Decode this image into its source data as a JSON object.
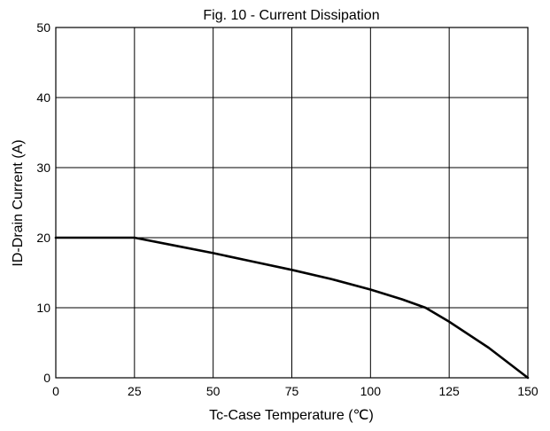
{
  "chart_data": {
    "type": "line",
    "title": "Fig. 10 - Current Dissipation",
    "xlabel": "Tc-Case Temperature (℃)",
    "ylabel": "ID-Drain Current (A)",
    "xlim": [
      0,
      150
    ],
    "ylim": [
      0,
      50
    ],
    "x_ticks": [
      0,
      25,
      50,
      75,
      100,
      125,
      150
    ],
    "y_ticks": [
      0,
      10,
      20,
      30,
      40,
      50
    ],
    "x_tick_labels": [
      "0",
      "25",
      "50",
      "75",
      "100",
      "125",
      "150"
    ],
    "y_tick_labels": [
      "0",
      "10",
      "20",
      "30",
      "40",
      "50"
    ],
    "grid": true,
    "line_color": "#000000",
    "series": [
      {
        "x": [
          0,
          25,
          37.5,
          50,
          62.5,
          75,
          87.5,
          100,
          110,
          117.5,
          125,
          137.5,
          150
        ],
        "y": [
          20,
          20,
          18.9,
          17.8,
          16.6,
          15.4,
          14.1,
          12.6,
          11.2,
          10.0,
          8.0,
          4.3,
          0
        ]
      }
    ]
  }
}
